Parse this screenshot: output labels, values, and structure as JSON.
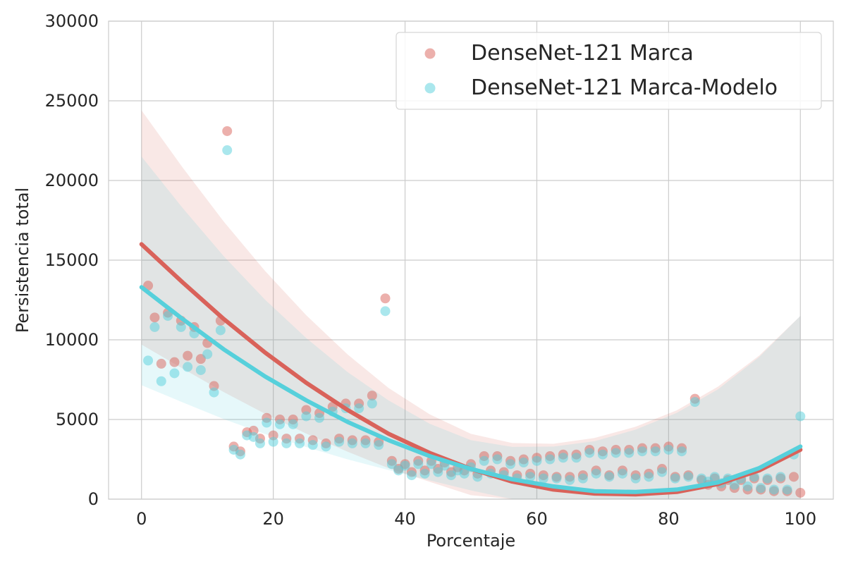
{
  "chart_data": {
    "type": "scatter",
    "title": "",
    "xlabel": "Porcentaje",
    "ylabel": "Persistencia total",
    "xlim": [
      -5,
      105
    ],
    "ylim": [
      0,
      30000
    ],
    "xticks": [
      0,
      20,
      40,
      60,
      80,
      100
    ],
    "yticks": [
      0,
      5000,
      10000,
      15000,
      20000,
      25000,
      30000
    ],
    "grid": true,
    "legend_position": "top-right",
    "series": [
      {
        "name": "DenseNet-121 Marca",
        "color": "#d9625a",
        "x": [
          1,
          2,
          3,
          4,
          5,
          6,
          7,
          8,
          9,
          10,
          11,
          12,
          13,
          14,
          15,
          16,
          17,
          18,
          19,
          20,
          21,
          22,
          23,
          24,
          25,
          26,
          27,
          28,
          29,
          30,
          31,
          32,
          33,
          34,
          35,
          36,
          37,
          38,
          39,
          40,
          41,
          42,
          43,
          44,
          45,
          46,
          47,
          48,
          49,
          50,
          51,
          52,
          53,
          54,
          55,
          56,
          57,
          58,
          59,
          60,
          61,
          62,
          63,
          64,
          65,
          66,
          67,
          68,
          69,
          70,
          71,
          72,
          73,
          74,
          75,
          76,
          77,
          78,
          79,
          80,
          81,
          82,
          83,
          84,
          85,
          86,
          87,
          88,
          89,
          90,
          91,
          92,
          93,
          94,
          95,
          96,
          97,
          98,
          99,
          100
        ],
        "y": [
          13400,
          11400,
          8500,
          11700,
          8600,
          11200,
          9000,
          10800,
          8800,
          9800,
          7100,
          11200,
          23100,
          3300,
          3000,
          4200,
          4300,
          3800,
          5100,
          4000,
          5000,
          3800,
          5000,
          3800,
          5600,
          3700,
          5400,
          3500,
          5800,
          3800,
          6000,
          3700,
          6000,
          3700,
          6500,
          3600,
          12600,
          2400,
          1900,
          2200,
          1700,
          2400,
          1800,
          2400,
          1900,
          2300,
          1700,
          2000,
          1800,
          2200,
          1600,
          2700,
          1800,
          2700,
          1700,
          2400,
          1500,
          2500,
          1600,
          2600,
          1500,
          2700,
          1400,
          2800,
          1400,
          2800,
          1500,
          3100,
          1800,
          3000,
          1500,
          3100,
          1800,
          3100,
          1500,
          3200,
          1600,
          3200,
          1900,
          3300,
          1400,
          3200,
          1500,
          6300,
          1200,
          900,
          1300,
          800,
          1200,
          700,
          1200,
          600,
          1300,
          600,
          1200,
          500,
          1300,
          500,
          1400,
          400
        ],
        "trend_y": [
          16000,
          13600,
          11300,
          9200,
          7300,
          5600,
          4100,
          2900,
          1900,
          1100,
          600,
          350,
          300,
          450,
          950,
          1800,
          3100
        ]
      },
      {
        "name": "DenseNet-121 Marca-Modelo",
        "color": "#56d0db",
        "x": [
          1,
          2,
          3,
          4,
          5,
          6,
          7,
          8,
          9,
          10,
          11,
          12,
          13,
          14,
          15,
          16,
          17,
          18,
          19,
          20,
          21,
          22,
          23,
          24,
          25,
          26,
          27,
          28,
          29,
          30,
          31,
          32,
          33,
          34,
          35,
          36,
          37,
          38,
          39,
          40,
          41,
          42,
          43,
          44,
          45,
          46,
          47,
          48,
          49,
          50,
          51,
          52,
          53,
          54,
          55,
          56,
          57,
          58,
          59,
          60,
          61,
          62,
          63,
          64,
          65,
          66,
          67,
          68,
          69,
          70,
          71,
          72,
          73,
          74,
          75,
          76,
          77,
          78,
          79,
          80,
          81,
          82,
          83,
          84,
          85,
          86,
          87,
          88,
          89,
          90,
          91,
          92,
          93,
          94,
          95,
          96,
          97,
          98,
          99,
          100
        ],
        "y": [
          8700,
          10800,
          7400,
          11500,
          7900,
          10800,
          8300,
          10400,
          8100,
          9100,
          6700,
          10600,
          21900,
          3100,
          2800,
          4000,
          3900,
          3500,
          4800,
          3600,
          4700,
          3500,
          4700,
          3500,
          5200,
          3400,
          5100,
          3300,
          5500,
          3600,
          5700,
          3500,
          5700,
          3500,
          6000,
          3400,
          11800,
          2200,
          1800,
          2100,
          1500,
          2200,
          1600,
          2200,
          1700,
          2100,
          1500,
          1800,
          1600,
          2000,
          1400,
          2400,
          1600,
          2500,
          1500,
          2200,
          1300,
          2300,
          1400,
          2400,
          1300,
          2500,
          1300,
          2600,
          1200,
          2600,
          1300,
          2900,
          1600,
          2800,
          1400,
          2900,
          1600,
          2900,
          1300,
          3000,
          1400,
          3000,
          1700,
          3100,
          1300,
          3000,
          1400,
          6100,
          1300,
          1100,
          1400,
          1000,
          1300,
          900,
          1300,
          800,
          1400,
          700,
          1300,
          600,
          1400,
          600,
          2800,
          5200
        ],
        "trend_y": [
          13300,
          11300,
          9400,
          7700,
          6200,
          4850,
          3700,
          2700,
          1900,
          1250,
          800,
          500,
          450,
          600,
          1050,
          1950,
          3300
        ]
      }
    ]
  }
}
